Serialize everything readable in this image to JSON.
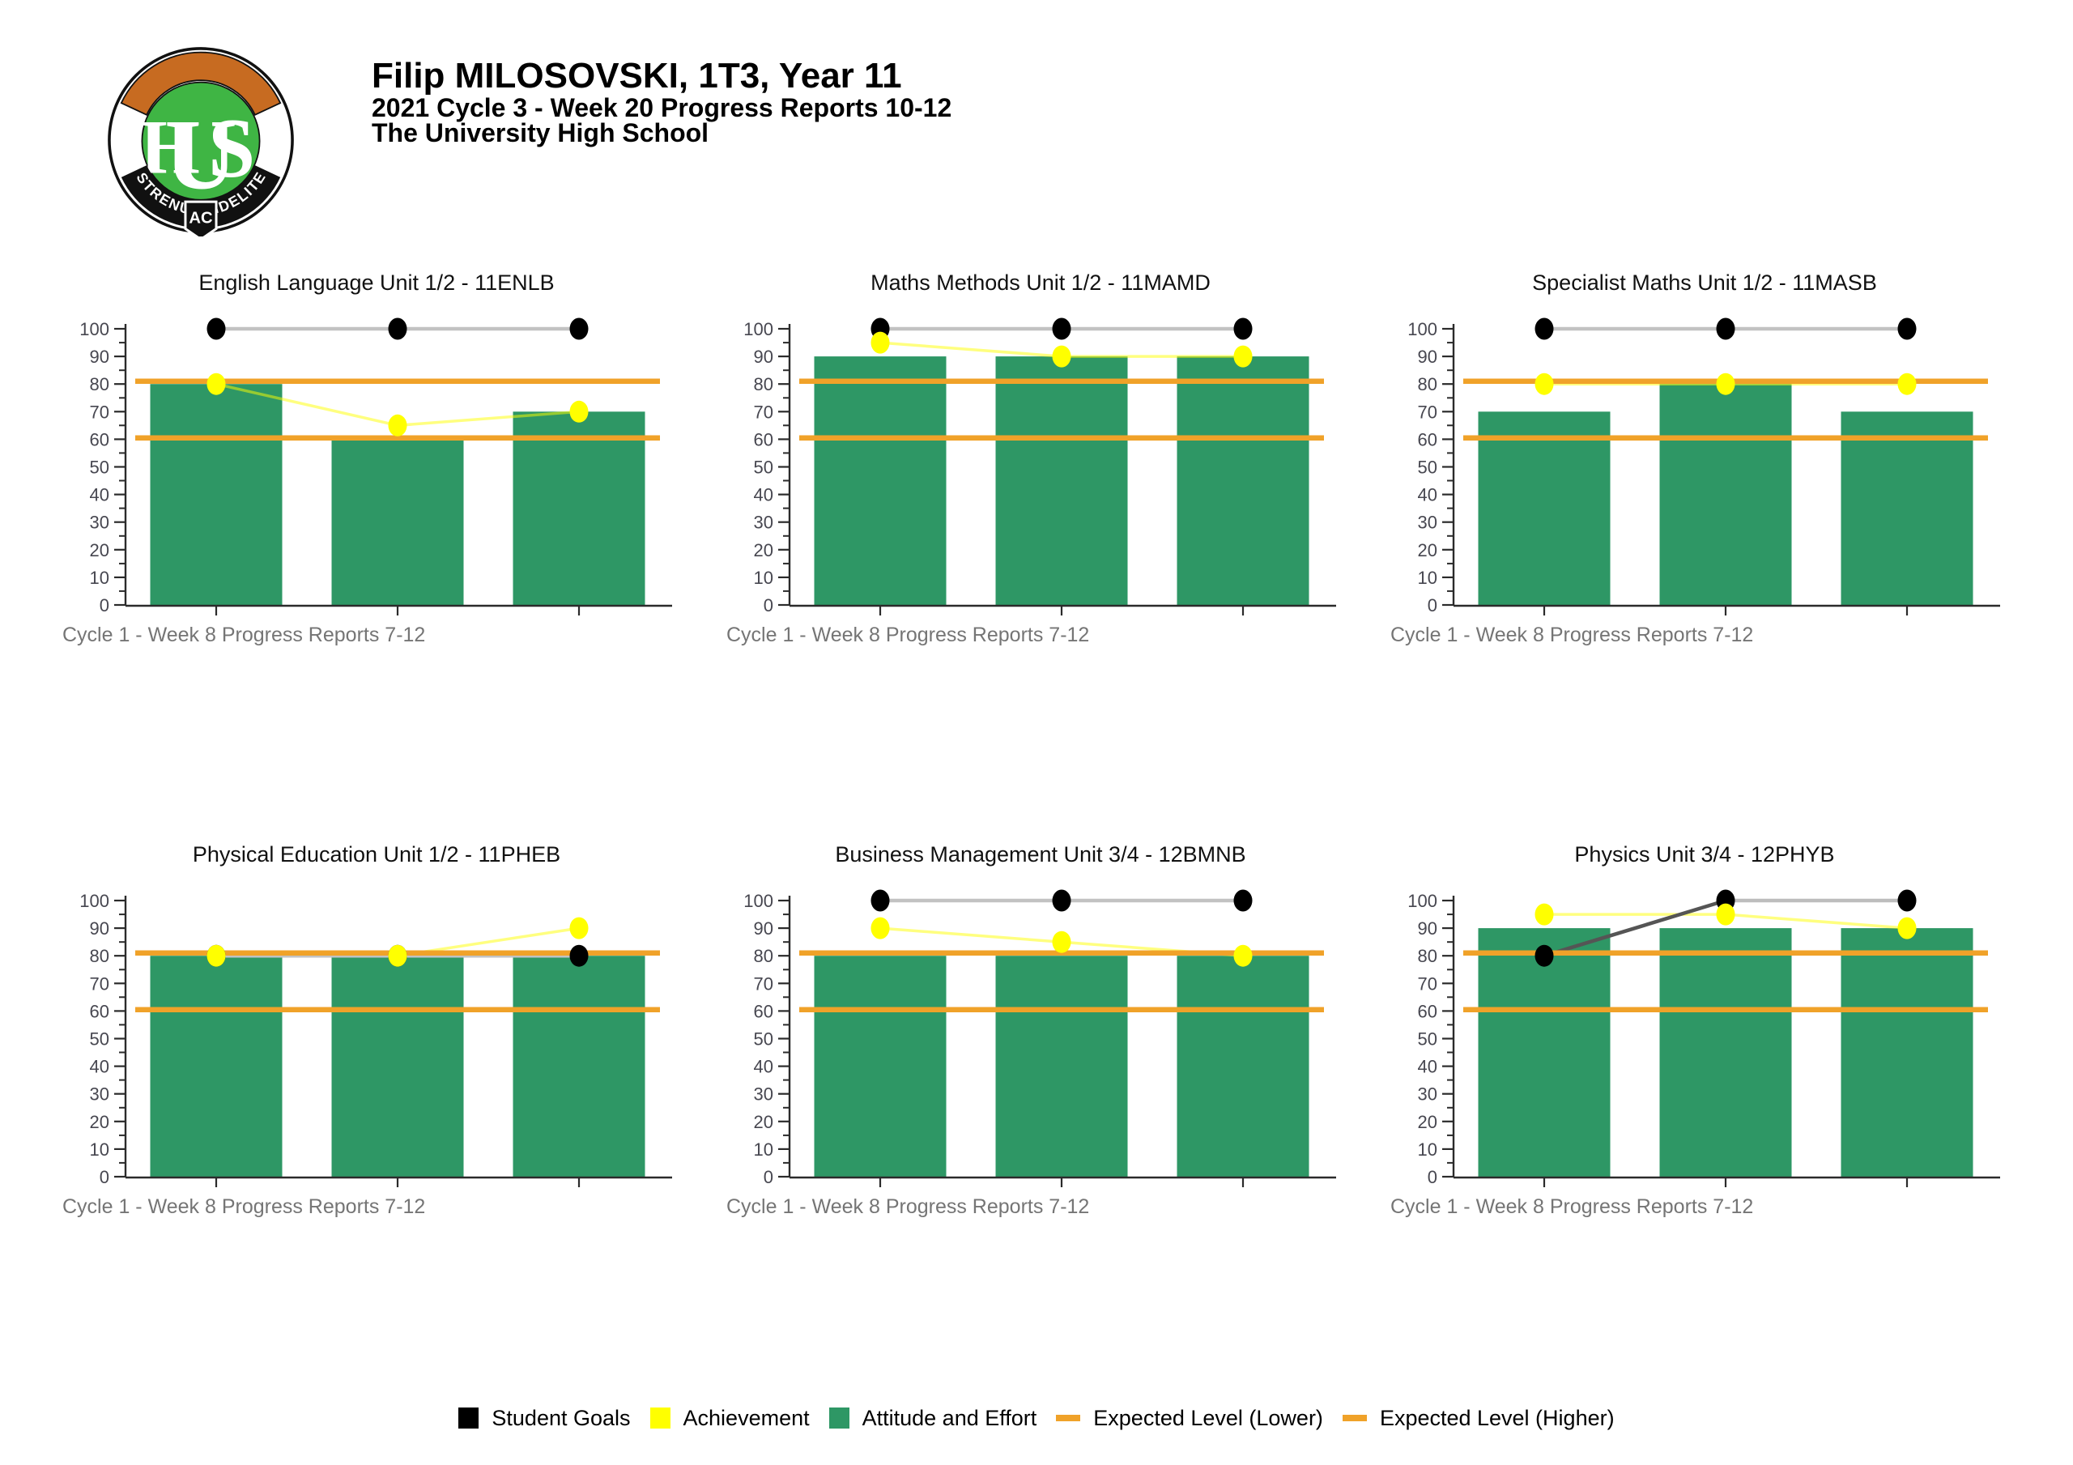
{
  "header": {
    "student_line": "Filip MILOSOVSKI, 1T3, Year 11",
    "report_line": "2021 Cycle 3 - Week 20 Progress Reports 10-12",
    "school_line": "The University High School",
    "logo": {
      "monogram": "UHS",
      "motto_left": "STRENUE",
      "motto_center": "AC",
      "motto_right": "FIDELITER"
    }
  },
  "chart_data": {
    "type": "bar",
    "x_caption": "Cycle 1 - Week 8 Progress Reports 7-12",
    "ylim": [
      0,
      100
    ],
    "y_tick_step": 10,
    "y_minor_step": 5,
    "y_tick_labels": [
      "0",
      "10",
      "20",
      "30",
      "40",
      "50",
      "60",
      "70",
      "80",
      "90",
      "100"
    ],
    "grid": false,
    "legend_position": "bottom",
    "series_names": [
      "Student Goals",
      "Achievement",
      "Attitude and Effort"
    ],
    "expected_level_lower": 60.5,
    "expected_level_higher": 81,
    "charts": [
      {
        "title": "English Language Unit 1/2 - 11ENLB",
        "student_goals": [
          100,
          100,
          100
        ],
        "achievement": [
          80,
          65,
          70
        ],
        "attitude_and_effort": [
          80,
          60,
          70
        ]
      },
      {
        "title": "Maths Methods Unit 1/2 - 11MAMD",
        "student_goals": [
          100,
          100,
          100
        ],
        "achievement": [
          95,
          90,
          90
        ],
        "attitude_and_effort": [
          90,
          90,
          90
        ]
      },
      {
        "title": "Specialist Maths Unit 1/2 - 11MASB",
        "student_goals": [
          100,
          100,
          100
        ],
        "achievement": [
          80,
          80,
          80
        ],
        "attitude_and_effort": [
          70,
          80,
          70
        ]
      },
      {
        "title": "Physical Education Unit 1/2 - 11PHEB",
        "student_goals": [
          80,
          80,
          80
        ],
        "achievement": [
          80,
          80,
          90
        ],
        "attitude_and_effort": [
          80,
          80,
          80
        ]
      },
      {
        "title": "Business Management Unit 3/4 - 12BMNB",
        "student_goals": [
          100,
          100,
          100
        ],
        "achievement": [
          90,
          85,
          80
        ],
        "attitude_and_effort": [
          80,
          80,
          80
        ]
      },
      {
        "title": "Physics Unit 3/4 - 12PHYB",
        "student_goals": [
          80,
          100,
          100
        ],
        "achievement": [
          95,
          95,
          90
        ],
        "attitude_and_effort": [
          90,
          90,
          90
        ],
        "goal_segment_colors": [
          "#555555",
          "#bdbdbd"
        ]
      }
    ]
  },
  "legend": {
    "items": [
      {
        "label": "Student Goals",
        "swatch": "square",
        "color": "#000000"
      },
      {
        "label": "Achievement",
        "swatch": "square",
        "color": "#ffff00"
      },
      {
        "label": "Attitude and Effort",
        "swatch": "square",
        "color": "#2e9765"
      },
      {
        "label": "Expected Level (Lower)",
        "swatch": "dash",
        "color": "#f0a229"
      },
      {
        "label": "Expected Level (Higher)",
        "swatch": "dash",
        "color": "#f0a229"
      }
    ]
  },
  "colors": {
    "bar_green": "#2e9765",
    "achievement_yellow": "#ffff00",
    "goals_black": "#000000",
    "goals_line_gray": "#c2c2c2",
    "expected_orange": "#f0a229",
    "logo_orange": "#c76b21",
    "logo_green": "#3fb544",
    "axis": "#2b2b2b",
    "tick_label": "#474750",
    "caption_gray": "#757575",
    "title_black": "#111111"
  }
}
